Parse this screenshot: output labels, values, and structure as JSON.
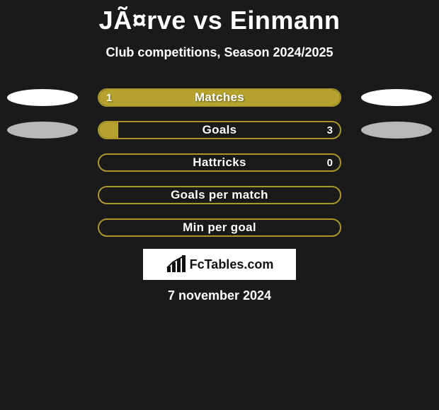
{
  "colors": {
    "accent": "#b5a22f",
    "accent_border": "#a9972b",
    "background": "#1a1a1a",
    "oval_white": "#ffffff",
    "oval_gray": "#b8b8b8"
  },
  "header": {
    "title": "JÃ¤rve vs Einmann",
    "subtitle": "Club competitions, Season 2024/2025"
  },
  "stats": [
    {
      "label": "Matches",
      "value_left": "1",
      "value_right": "",
      "fill_pct": 100,
      "show_left_oval": true,
      "show_right_oval": true,
      "left_oval_color": "oval_white",
      "right_oval_color": "oval_white"
    },
    {
      "label": "Goals",
      "value_left": "",
      "value_right": "3",
      "fill_pct": 8,
      "show_left_oval": true,
      "show_right_oval": true,
      "left_oval_color": "oval_gray",
      "right_oval_color": "oval_gray"
    },
    {
      "label": "Hattricks",
      "value_left": "",
      "value_right": "0",
      "fill_pct": 0,
      "show_left_oval": false,
      "show_right_oval": false
    },
    {
      "label": "Goals per match",
      "value_left": "",
      "value_right": "",
      "fill_pct": 0,
      "show_left_oval": false,
      "show_right_oval": false
    },
    {
      "label": "Min per goal",
      "value_left": "",
      "value_right": "",
      "fill_pct": 0,
      "show_left_oval": false,
      "show_right_oval": false
    }
  ],
  "brand": {
    "icon": "bars-icon",
    "text": "FcTables.com"
  },
  "footer": {
    "date": "7 november 2024"
  }
}
